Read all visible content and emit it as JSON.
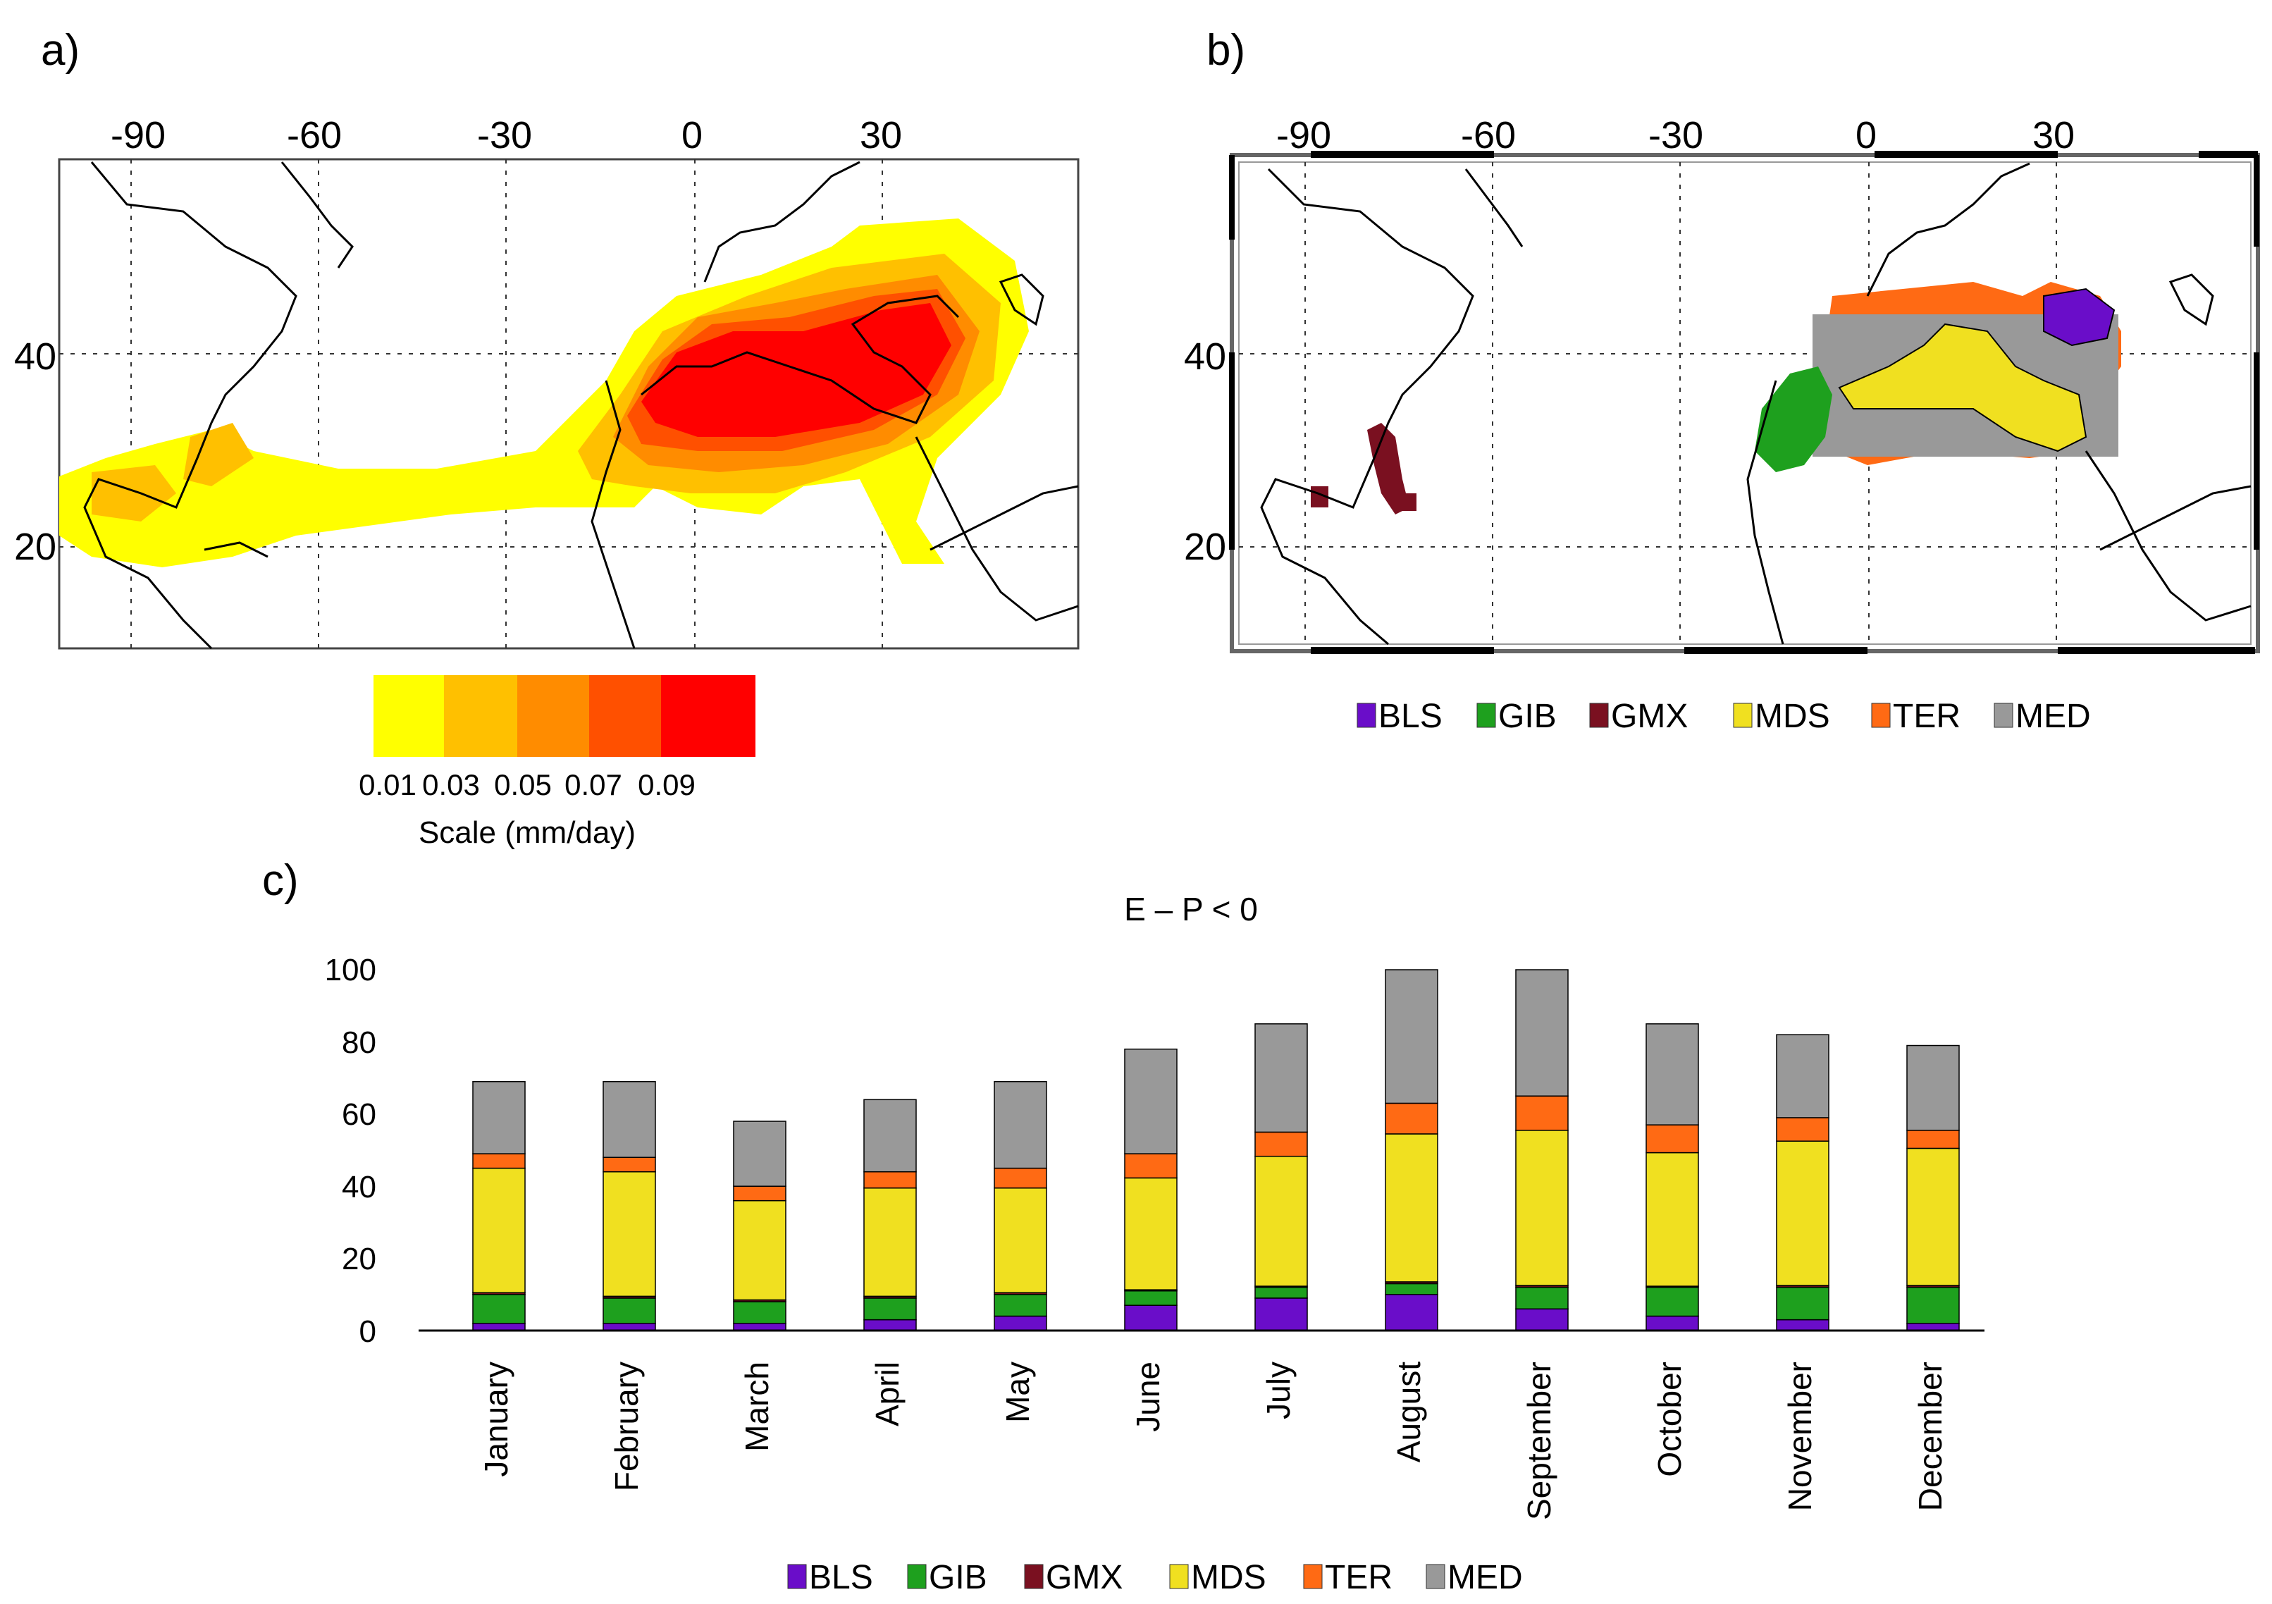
{
  "panels": {
    "a": {
      "label": "a)",
      "lon_ticks": [
        "-90",
        "-60",
        "-30",
        "0",
        "30"
      ],
      "lat_ticks": [
        "40",
        "20"
      ],
      "colorbar": {
        "tick_labels": [
          "0.01",
          "0.03",
          "0.05",
          "0.07",
          "0.09"
        ],
        "title": "Scale (mm/day)",
        "colors": [
          "#ffff00",
          "#ffc000",
          "#ff8c00",
          "#ff5000",
          "#ff0000"
        ]
      }
    },
    "b": {
      "label": "b)",
      "lon_ticks": [
        "-90",
        "-60",
        "-30",
        "0",
        "30"
      ],
      "lat_ticks": [
        "40",
        "20"
      ],
      "legend": [
        {
          "label": "BLS",
          "color": "#6a0dc9"
        },
        {
          "label": "GIB",
          "color": "#1ea01e"
        },
        {
          "label": "GMX",
          "color": "#7a1020"
        },
        {
          "label": "MDS",
          "color": "#f0e020"
        },
        {
          "label": "TER",
          "color": "#ff6a14"
        },
        {
          "label": "MED",
          "color": "#999999"
        }
      ]
    },
    "c": {
      "label": "c)"
    }
  },
  "chart_data": {
    "type": "bar",
    "stacked": true,
    "title": "E – P < 0",
    "categories": [
      "January",
      "February",
      "March",
      "April",
      "May",
      "June",
      "July",
      "August",
      "September",
      "October",
      "November",
      "December"
    ],
    "ylim": [
      0,
      100
    ],
    "yticks": [
      "0",
      "20",
      "40",
      "60",
      "80",
      "100"
    ],
    "grid": false,
    "legend_position": "bottom",
    "series": [
      {
        "name": "BLS",
        "color": "#6a0dc9",
        "values": [
          2,
          2,
          2,
          3,
          4,
          7,
          9,
          10,
          6,
          4,
          3,
          2
        ]
      },
      {
        "name": "GIB",
        "color": "#1ea01e",
        "values": [
          8,
          7,
          6,
          6,
          6,
          4,
          3,
          3,
          6,
          8,
          9,
          10
        ]
      },
      {
        "name": "GMX",
        "color": "#7a1020",
        "values": [
          0.5,
          0.5,
          0.5,
          0.5,
          0.5,
          0.3,
          0.3,
          0.5,
          0.5,
          0.3,
          0.5,
          0.5
        ]
      },
      {
        "name": "MDS",
        "color": "#f0e020",
        "values": [
          34.5,
          34.5,
          27.5,
          30,
          29,
          31,
          36,
          41,
          43,
          37,
          40,
          38
        ]
      },
      {
        "name": "TER",
        "color": "#ff6a14",
        "values": [
          4,
          4,
          4,
          4.5,
          5.5,
          6.7,
          6.7,
          8.5,
          9.5,
          7.7,
          6.5,
          5
        ]
      },
      {
        "name": "MED",
        "color": "#999999",
        "values": [
          20,
          21,
          18,
          20,
          24,
          29,
          30,
          37,
          35,
          28,
          23,
          23.5
        ]
      }
    ]
  }
}
